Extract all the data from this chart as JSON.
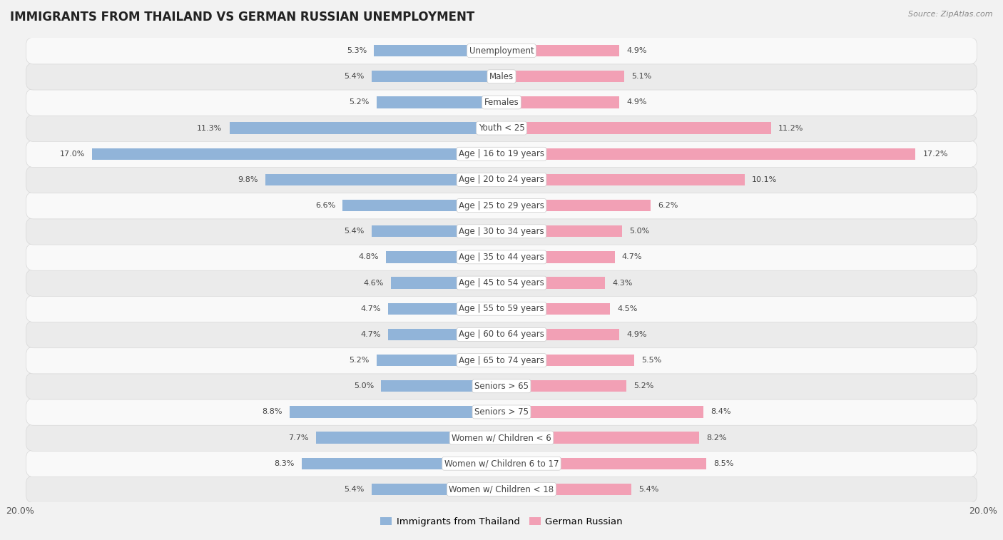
{
  "title": "IMMIGRANTS FROM THAILAND VS GERMAN RUSSIAN UNEMPLOYMENT",
  "source": "Source: ZipAtlas.com",
  "categories": [
    "Unemployment",
    "Males",
    "Females",
    "Youth < 25",
    "Age | 16 to 19 years",
    "Age | 20 to 24 years",
    "Age | 25 to 29 years",
    "Age | 30 to 34 years",
    "Age | 35 to 44 years",
    "Age | 45 to 54 years",
    "Age | 55 to 59 years",
    "Age | 60 to 64 years",
    "Age | 65 to 74 years",
    "Seniors > 65",
    "Seniors > 75",
    "Women w/ Children < 6",
    "Women w/ Children 6 to 17",
    "Women w/ Children < 18"
  ],
  "thailand_values": [
    5.3,
    5.4,
    5.2,
    11.3,
    17.0,
    9.8,
    6.6,
    5.4,
    4.8,
    4.6,
    4.7,
    4.7,
    5.2,
    5.0,
    8.8,
    7.7,
    8.3,
    5.4
  ],
  "german_russian_values": [
    4.9,
    5.1,
    4.9,
    11.2,
    17.2,
    10.1,
    6.2,
    5.0,
    4.7,
    4.3,
    4.5,
    4.9,
    5.5,
    5.2,
    8.4,
    8.2,
    8.5,
    5.4
  ],
  "thailand_color": "#91b4d9",
  "german_russian_color": "#f2a0b5",
  "thailand_label": "Immigrants from Thailand",
  "german_russian_label": "German Russian",
  "axis_max": 20.0,
  "background_color": "#f2f2f2",
  "row_color_odd": "#f9f9f9",
  "row_color_even": "#ebebeb",
  "title_fontsize": 12,
  "label_fontsize": 8.5,
  "value_fontsize": 8,
  "legend_fontsize": 9.5
}
